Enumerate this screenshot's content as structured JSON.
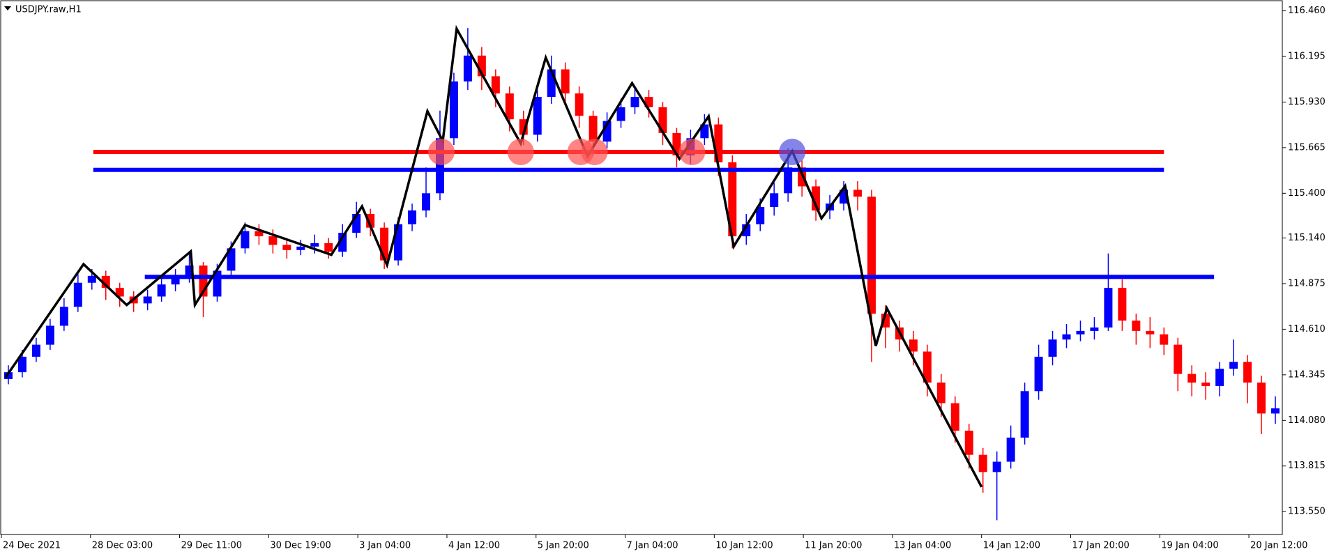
{
  "chart_data": {
    "type": "candlestick",
    "title": "USDJPY.raw,H1",
    "up_color": "#0000ff",
    "down_color": "#ff0000",
    "xlim": [
      0,
      92
    ],
    "xticks": [
      {
        "value": 0,
        "label": "24 Dec 2021"
      },
      {
        "value": 6.4,
        "label": "28 Dec 03:00"
      },
      {
        "value": 12.8,
        "label": "29 Dec 11:00"
      },
      {
        "value": 19.2,
        "label": "30 Dec 19:00"
      },
      {
        "value": 25.6,
        "label": "3 Jan 04:00"
      },
      {
        "value": 32,
        "label": "4 Jan 12:00"
      },
      {
        "value": 38.4,
        "label": "5 Jan 20:00"
      },
      {
        "value": 44.8,
        "label": "7 Jan 04:00"
      },
      {
        "value": 51.2,
        "label": "10 Jan 12:00"
      },
      {
        "value": 57.6,
        "label": "11 Jan 20:00"
      },
      {
        "value": 64,
        "label": "13 Jan 04:00"
      },
      {
        "value": 70.4,
        "label": "14 Jan 12:00"
      },
      {
        "value": 76.8,
        "label": "17 Jan 20:00"
      },
      {
        "value": 83.2,
        "label": "19 Jan 04:00"
      },
      {
        "value": 89.6,
        "label": "20 Jan 12:00"
      }
    ],
    "ylim": [
      113.417,
      116.519
    ],
    "yticks": [
      {
        "value": 116.46,
        "label": "116.460"
      },
      116.195,
      {
        "value": 115.93,
        "label": "115.930"
      },
      115.665,
      {
        "value": 115.4,
        "label": "115.400"
      },
      {
        "value": 115.14,
        "label": "115.140"
      },
      114.875,
      {
        "value": 114.61,
        "label": "114.610"
      },
      114.345,
      {
        "value": 114.08,
        "label": "114.080"
      },
      113.815,
      {
        "value": 113.55,
        "label": "113.550"
      }
    ],
    "open": [
      114.32,
      114.36,
      114.45,
      114.52,
      114.63,
      114.74,
      114.88,
      114.92,
      114.85,
      114.8,
      114.76,
      114.8,
      114.87,
      114.92,
      114.98,
      114.8,
      114.95,
      115.08,
      115.18,
      115.15,
      115.1,
      115.07,
      115.09,
      115.11,
      115.06,
      115.17,
      115.28,
      115.2,
      115.01,
      115.22,
      115.3,
      115.4,
      115.72,
      116.05,
      116.2,
      116.08,
      115.98,
      115.83,
      115.74,
      115.96,
      116.12,
      115.98,
      115.85,
      115.7,
      115.82,
      115.9,
      115.96,
      115.9,
      115.75,
      115.62,
      115.72,
      115.8,
      115.58,
      115.15,
      115.22,
      115.32,
      115.4,
      115.55,
      115.44,
      115.3,
      115.34,
      115.42,
      115.38,
      114.7,
      114.62,
      114.55,
      114.48,
      114.3,
      114.18,
      114.02,
      113.88,
      113.78,
      113.84,
      113.98,
      114.25,
      114.45,
      114.55,
      114.58,
      114.6,
      114.62,
      114.85,
      114.66,
      114.6,
      114.58,
      114.52,
      114.35,
      114.3,
      114.28,
      114.38,
      114.42,
      114.3,
      114.12
    ],
    "high": [
      114.4,
      114.49,
      114.56,
      114.67,
      114.79,
      114.93,
      114.96,
      114.95,
      114.88,
      114.83,
      114.84,
      114.91,
      114.96,
      115.05,
      115.0,
      114.99,
      115.12,
      115.23,
      115.22,
      115.19,
      115.13,
      115.13,
      115.16,
      115.14,
      115.22,
      115.35,
      115.31,
      115.23,
      115.26,
      115.34,
      115.55,
      115.88,
      116.1,
      116.36,
      116.25,
      116.12,
      116.02,
      115.88,
      116.0,
      116.2,
      116.16,
      116.02,
      115.88,
      115.87,
      115.95,
      116.02,
      116.0,
      115.93,
      115.78,
      115.77,
      115.86,
      115.84,
      115.62,
      115.28,
      115.37,
      115.46,
      115.66,
      115.59,
      115.48,
      115.39,
      115.47,
      115.47,
      115.42,
      114.75,
      114.66,
      114.6,
      114.52,
      114.35,
      114.22,
      114.06,
      113.92,
      113.9,
      114.05,
      114.3,
      114.52,
      114.6,
      114.64,
      114.66,
      114.68,
      115.05,
      114.9,
      114.7,
      114.68,
      114.62,
      114.56,
      114.4,
      114.36,
      114.42,
      114.55,
      114.46,
      114.34,
      114.22
    ],
    "low": [
      114.29,
      114.33,
      114.42,
      114.49,
      114.6,
      114.71,
      114.84,
      114.78,
      114.74,
      114.71,
      114.72,
      114.77,
      114.83,
      114.88,
      114.68,
      114.77,
      114.92,
      115.05,
      115.1,
      115.05,
      115.02,
      115.04,
      115.05,
      115.02,
      115.03,
      115.14,
      115.15,
      114.96,
      114.98,
      115.18,
      115.26,
      115.36,
      115.68,
      116.0,
      116.0,
      115.9,
      115.76,
      115.68,
      115.7,
      115.92,
      115.92,
      115.78,
      115.62,
      115.66,
      115.78,
      115.86,
      115.84,
      115.68,
      115.55,
      115.57,
      115.68,
      115.5,
      115.08,
      115.1,
      115.18,
      115.27,
      115.35,
      115.38,
      115.24,
      115.25,
      115.3,
      115.3,
      114.42,
      114.5,
      114.48,
      114.4,
      114.22,
      114.1,
      113.95,
      113.8,
      113.66,
      113.5,
      113.8,
      113.94,
      114.2,
      114.4,
      114.5,
      114.54,
      114.55,
      114.6,
      114.6,
      114.52,
      114.5,
      114.46,
      114.25,
      114.22,
      114.2,
      114.22,
      114.34,
      114.18,
      114.0,
      114.06
    ],
    "close": [
      114.36,
      114.45,
      114.52,
      114.63,
      114.74,
      114.88,
      114.92,
      114.85,
      114.8,
      114.76,
      114.8,
      114.87,
      114.92,
      114.98,
      114.8,
      114.95,
      115.08,
      115.18,
      115.15,
      115.1,
      115.07,
      115.09,
      115.11,
      115.06,
      115.17,
      115.28,
      115.2,
      115.01,
      115.22,
      115.3,
      115.4,
      115.72,
      116.05,
      116.2,
      116.08,
      115.98,
      115.83,
      115.74,
      115.96,
      116.12,
      115.98,
      115.85,
      115.7,
      115.82,
      115.9,
      115.96,
      115.9,
      115.75,
      115.62,
      115.72,
      115.8,
      115.58,
      115.15,
      115.22,
      115.32,
      115.4,
      115.55,
      115.44,
      115.3,
      115.34,
      115.42,
      115.38,
      114.7,
      114.62,
      114.55,
      114.48,
      114.3,
      114.18,
      114.02,
      113.88,
      113.78,
      113.84,
      113.98,
      114.25,
      114.45,
      114.55,
      114.58,
      114.6,
      114.62,
      114.85,
      114.66,
      114.6,
      114.58,
      114.52,
      114.35,
      114.3,
      114.28,
      114.38,
      114.42,
      114.3,
      114.12,
      114.15
    ],
    "levels": [
      {
        "value": 115.64,
        "x": [
          6.6,
          83.5
        ],
        "color": "#ff0000"
      },
      {
        "value": 115.536,
        "x": [
          6.6,
          83.5
        ],
        "color": "#0000ff"
      },
      {
        "value": 114.914,
        "x": [
          10.3,
          87.1
        ],
        "color": "#0000ff"
      }
    ],
    "markers": [
      {
        "x": 31.6,
        "y": 115.64,
        "color": "#ff5050"
      },
      {
        "x": 37.3,
        "y": 115.64,
        "color": "#ff5050"
      },
      {
        "x": 41.6,
        "y": 115.64,
        "color": "#ff5050"
      },
      {
        "x": 42.6,
        "y": 115.64,
        "color": "#ff5050"
      },
      {
        "x": 49.6,
        "y": 115.64,
        "color": "#ff5050"
      },
      {
        "x": 56.8,
        "y": 115.64,
        "color": "#5050e0"
      }
    ],
    "zigzag": {
      "color": "#000000",
      "x": [
        0.3,
        5.9,
        9.0,
        13.6,
        13.9,
        17.5,
        23.7,
        25.9,
        27.7,
        30.6,
        31.7,
        32.7,
        37.3,
        39.1,
        42.1,
        45.3,
        48.7,
        50.8,
        52.6,
        56.8,
        58.9,
        60.6,
        62.8,
        63.6,
        70.4
      ],
      "y": [
        114.33,
        114.988,
        114.751,
        115.062,
        114.751,
        115.215,
        115.042,
        115.324,
        114.983,
        115.877,
        115.704,
        116.356,
        115.689,
        116.188,
        115.615,
        116.04,
        115.6,
        115.847,
        115.091,
        115.645,
        115.254,
        115.442,
        114.513,
        114.731,
        113.693
      ]
    }
  }
}
